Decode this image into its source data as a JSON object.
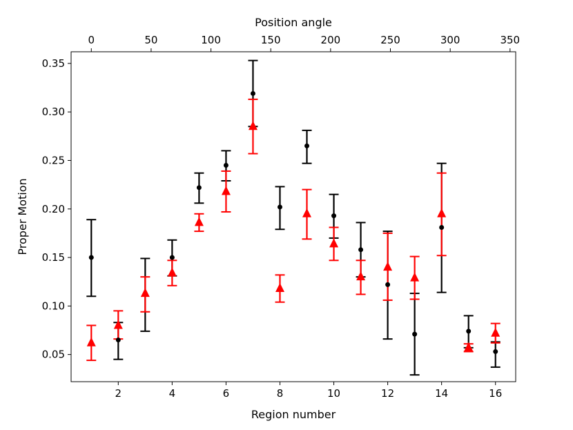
{
  "chart_data": {
    "type": "scatter",
    "xlabel": "Region number",
    "ylabel": "Proper Motion",
    "top_xlabel": "Position angle",
    "xlim": [
      0.25,
      16.75
    ],
    "ylim": [
      0.022,
      0.362
    ],
    "x_ticks": [
      2,
      4,
      6,
      8,
      10,
      12,
      14,
      16
    ],
    "y_ticks": [
      0.05,
      0.1,
      0.15,
      0.2,
      0.25,
      0.3,
      0.35
    ],
    "y_tick_labels": [
      "0.05",
      "0.10",
      "0.15",
      "0.20",
      "0.25",
      "0.30",
      "0.35"
    ],
    "top_ticks": [
      0,
      50,
      100,
      150,
      200,
      250,
      300,
      350
    ],
    "top_tick_map": {
      "region_at_0": 1,
      "regions_per_unit": 0.0444
    },
    "series": [
      {
        "name": "black points",
        "color": "#000000",
        "marker": "circle",
        "x": [
          1,
          2,
          3,
          4,
          5,
          6,
          7,
          8,
          9,
          10,
          11,
          12,
          13,
          14,
          15,
          16
        ],
        "y": [
          0.15,
          0.065,
          0.112,
          0.15,
          0.222,
          0.245,
          0.319,
          0.202,
          0.265,
          0.193,
          0.158,
          0.122,
          0.071,
          0.181,
          0.074,
          0.053
        ],
        "y_low": [
          0.11,
          0.045,
          0.074,
          0.131,
          0.206,
          0.229,
          0.285,
          0.179,
          0.247,
          0.17,
          0.13,
          0.066,
          0.029,
          0.114,
          0.057,
          0.037
        ],
        "y_high": [
          0.189,
          0.083,
          0.149,
          0.168,
          0.237,
          0.26,
          0.353,
          0.223,
          0.281,
          0.215,
          0.186,
          0.177,
          0.113,
          0.247,
          0.09,
          0.063
        ]
      },
      {
        "name": "red triangles",
        "color": "#ff0000",
        "marker": "triangle",
        "x": [
          1,
          2,
          3,
          4,
          5,
          6,
          7,
          8,
          9,
          10,
          11,
          12,
          13,
          14,
          15,
          16
        ],
        "y": [
          0.062,
          0.08,
          0.113,
          0.134,
          0.186,
          0.218,
          0.285,
          0.118,
          0.195,
          0.164,
          0.13,
          0.14,
          0.129,
          0.195,
          0.057,
          0.072
        ],
        "y_low": [
          0.044,
          0.066,
          0.094,
          0.121,
          0.177,
          0.197,
          0.257,
          0.104,
          0.169,
          0.147,
          0.112,
          0.106,
          0.107,
          0.152,
          0.053,
          0.062
        ],
        "y_high": [
          0.08,
          0.095,
          0.13,
          0.147,
          0.195,
          0.239,
          0.313,
          0.132,
          0.22,
          0.181,
          0.147,
          0.175,
          0.151,
          0.237,
          0.061,
          0.082
        ]
      }
    ]
  }
}
